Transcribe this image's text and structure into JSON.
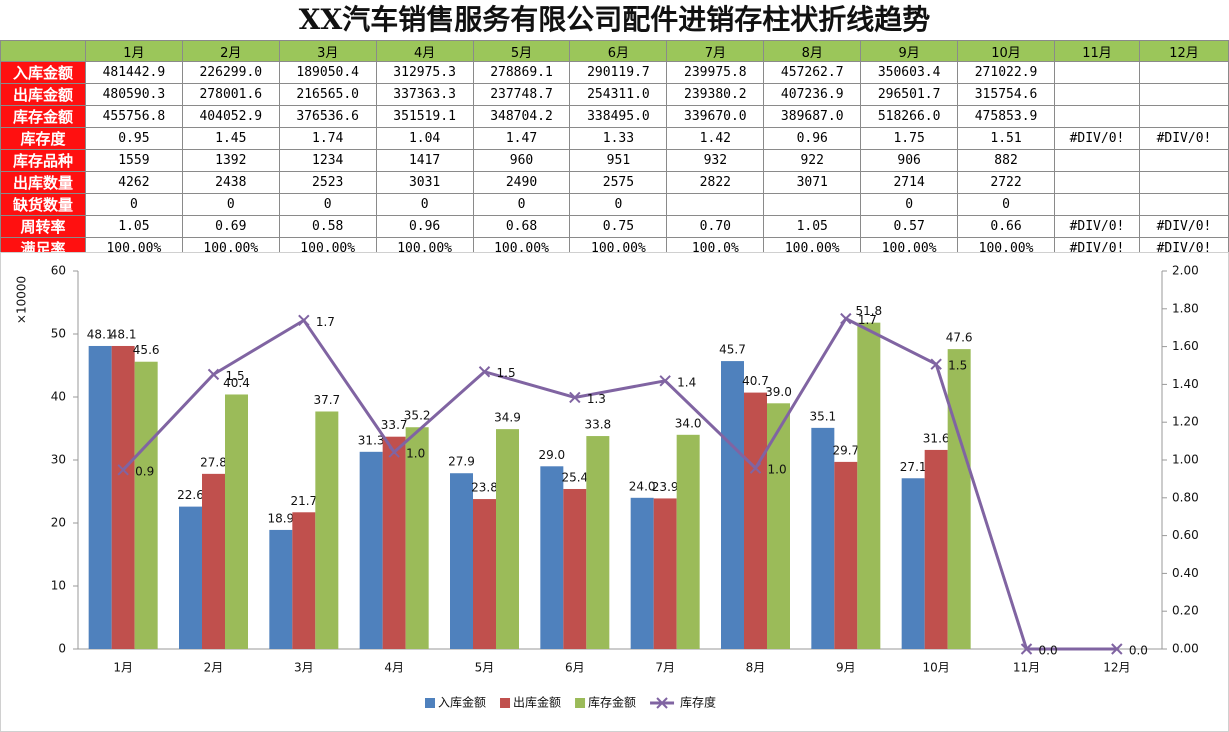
{
  "title": "XX汽车销售服务有限公司配件进销存柱状折线趋势",
  "table": {
    "header": [
      "1月",
      "2月",
      "3月",
      "4月",
      "5月",
      "6月",
      "7月",
      "8月",
      "9月",
      "10月",
      "11月",
      "12月"
    ],
    "rows": [
      {
        "label": "入库金额",
        "cells": [
          "481442.9",
          "226299.0",
          "189050.4",
          "312975.3",
          "278869.1",
          "290119.7",
          "239975.8",
          "457262.7",
          "350603.4",
          "271022.9",
          null,
          null
        ]
      },
      {
        "label": "出库金额",
        "cells": [
          "480590.3",
          "278001.6",
          "216565.0",
          "337363.3",
          "237748.7",
          "254311.0",
          "239380.2",
          "407236.9",
          "296501.7",
          "315754.6",
          null,
          null
        ]
      },
      {
        "label": "库存金额",
        "cells": [
          "455756.8",
          "404052.9",
          "376536.6",
          "351519.1",
          "348704.2",
          "338495.0",
          "339670.0",
          "389687.0",
          "518266.0",
          "475853.9",
          null,
          null
        ]
      },
      {
        "label": "库存度",
        "cells": [
          "0.95",
          "1.45",
          "1.74",
          "1.04",
          "1.47",
          "1.33",
          "1.42",
          "0.96",
          "1.75",
          "1.51",
          "#DIV/0!",
          "#DIV/0!"
        ]
      },
      {
        "label": "库存品种",
        "cells": [
          "1559",
          "1392",
          "1234",
          "1417",
          "960",
          "951",
          "932",
          "922",
          "906",
          "882",
          null,
          null
        ]
      },
      {
        "label": "出库数量",
        "cells": [
          "4262",
          "2438",
          "2523",
          "3031",
          "2490",
          "2575",
          "2822",
          "3071",
          "2714",
          "2722",
          null,
          null
        ]
      },
      {
        "label": "缺货数量",
        "cells": [
          "0",
          "0",
          "0",
          "0",
          "0",
          "0",
          null,
          null,
          "0",
          "0",
          null,
          null
        ]
      },
      {
        "label": "周转率",
        "cells": [
          "1.05",
          "0.69",
          "0.58",
          "0.96",
          "0.68",
          "0.75",
          "0.70",
          "1.05",
          "0.57",
          "0.66",
          "#DIV/0!",
          "#DIV/0!"
        ]
      },
      {
        "label": "满足率",
        "cells": [
          "100.00%",
          "100.00%",
          "100.00%",
          "100.00%",
          "100.00%",
          "100.00%",
          "100.0%",
          "100.00%",
          "100.00%",
          "100.00%",
          "#DIV/0!",
          "#DIV/0!"
        ]
      }
    ]
  },
  "chart_data": {
    "type": "bar",
    "y_label": "×10000",
    "categories": [
      "1月",
      "2月",
      "3月",
      "4月",
      "5月",
      "6月",
      "7月",
      "8月",
      "9月",
      "10月",
      "11月",
      "12月"
    ],
    "series": [
      {
        "name": "入库金额",
        "type": "bar",
        "color": "#4f81bd",
        "values": [
          48.1,
          22.6,
          18.9,
          31.3,
          27.9,
          29.0,
          24.0,
          45.7,
          35.1,
          27.1,
          null,
          null
        ],
        "value_labels": [
          "48.1",
          "22.6",
          "18.9",
          "31.3",
          "27.9",
          "29.0",
          "24.0",
          "45.7",
          "35.1",
          "27.1",
          null,
          null
        ]
      },
      {
        "name": "出库金额",
        "type": "bar",
        "color": "#c0504d",
        "values": [
          48.1,
          27.8,
          21.7,
          33.7,
          23.8,
          25.4,
          23.9,
          40.7,
          29.7,
          31.6,
          null,
          null
        ],
        "value_labels": [
          "48.1",
          "27.8",
          "21.7",
          "33.7",
          "23.8",
          "25.4",
          "23.9",
          "40.7",
          "29.7",
          "31.6",
          null,
          null
        ]
      },
      {
        "name": "库存金额",
        "type": "bar",
        "color": "#9bbb59",
        "values": [
          45.6,
          40.4,
          37.7,
          35.2,
          34.9,
          33.8,
          34.0,
          39.0,
          51.8,
          47.6,
          null,
          null
        ],
        "value_labels": [
          "45.6",
          "40.4",
          "37.7",
          "35.2",
          "34.9",
          "33.8",
          "34.0",
          "39.0",
          "51.8",
          "47.6",
          null,
          null
        ]
      },
      {
        "name": "库存度",
        "type": "line",
        "axis": "y2",
        "color": "#8064a2",
        "values": [
          0.948,
          1.453,
          1.739,
          1.042,
          1.467,
          1.331,
          1.419,
          0.957,
          1.748,
          1.507,
          0,
          0
        ],
        "value_labels": [
          "0.9",
          "1.5",
          "1.7",
          "1.0",
          "1.5",
          "1.3",
          "1.4",
          "1.0",
          "1.7",
          "1.5",
          "0.0",
          "0.0"
        ]
      }
    ],
    "ylim": [
      0,
      60
    ],
    "yticks": [
      0,
      10,
      20,
      30,
      40,
      50,
      60
    ],
    "y2lim": [
      0,
      2
    ],
    "y2ticks": [
      {
        "value": 0,
        "label": "0.00"
      },
      {
        "value": 0.2,
        "label": "0.20"
      },
      {
        "value": 0.4,
        "label": "0.40"
      },
      {
        "value": 0.6,
        "label": "0.60"
      },
      {
        "value": 0.8,
        "label": "0.80"
      },
      {
        "value": 1,
        "label": "1.00"
      },
      {
        "value": 1.2,
        "label": "1.20"
      },
      {
        "value": 1.4,
        "label": "1.40"
      },
      {
        "value": 1.6,
        "label": "1.60"
      },
      {
        "value": 1.8,
        "label": "1.80"
      },
      {
        "value": 2,
        "label": "2.00"
      }
    ],
    "grid": false,
    "legend": "bottom"
  }
}
